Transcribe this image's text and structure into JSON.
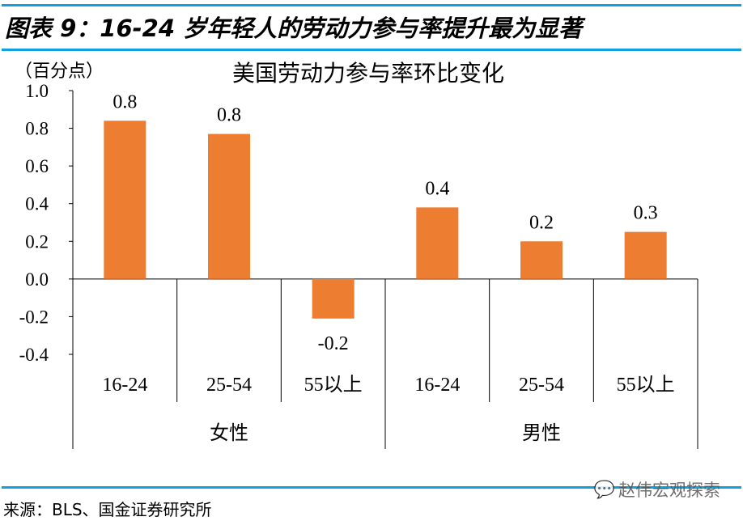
{
  "header": {
    "title": "图表 9：16-24 岁年轻人的劳动力参与率提升最为显著"
  },
  "footer": {
    "source": "来源：BLS、国金证券研究所",
    "watermark": "赵伟宏观探索"
  },
  "colors": {
    "bar": "#ED7D31",
    "rule": "#0FA0E0"
  },
  "chart_data": {
    "type": "bar",
    "title": "美国劳动力参与率环比变化",
    "ylabel": "（百分点）",
    "ylim": [
      -0.4,
      1.0
    ],
    "yticks": [
      "1.0",
      "0.8",
      "0.6",
      "0.4",
      "0.2",
      "0.0",
      "-0.2",
      "-0.4"
    ],
    "ytick_values": [
      1.0,
      0.8,
      0.6,
      0.4,
      0.2,
      0.0,
      -0.2,
      -0.4
    ],
    "categories": [
      "16-24",
      "25-54",
      "55以上",
      "16-24",
      "25-54",
      "55以上"
    ],
    "groups": [
      "女性",
      "男性"
    ],
    "values": [
      0.84,
      0.77,
      -0.21,
      0.38,
      0.2,
      0.25
    ],
    "data_labels": [
      "0.8",
      "0.8",
      "-0.2",
      "0.4",
      "0.2",
      "0.3"
    ]
  }
}
